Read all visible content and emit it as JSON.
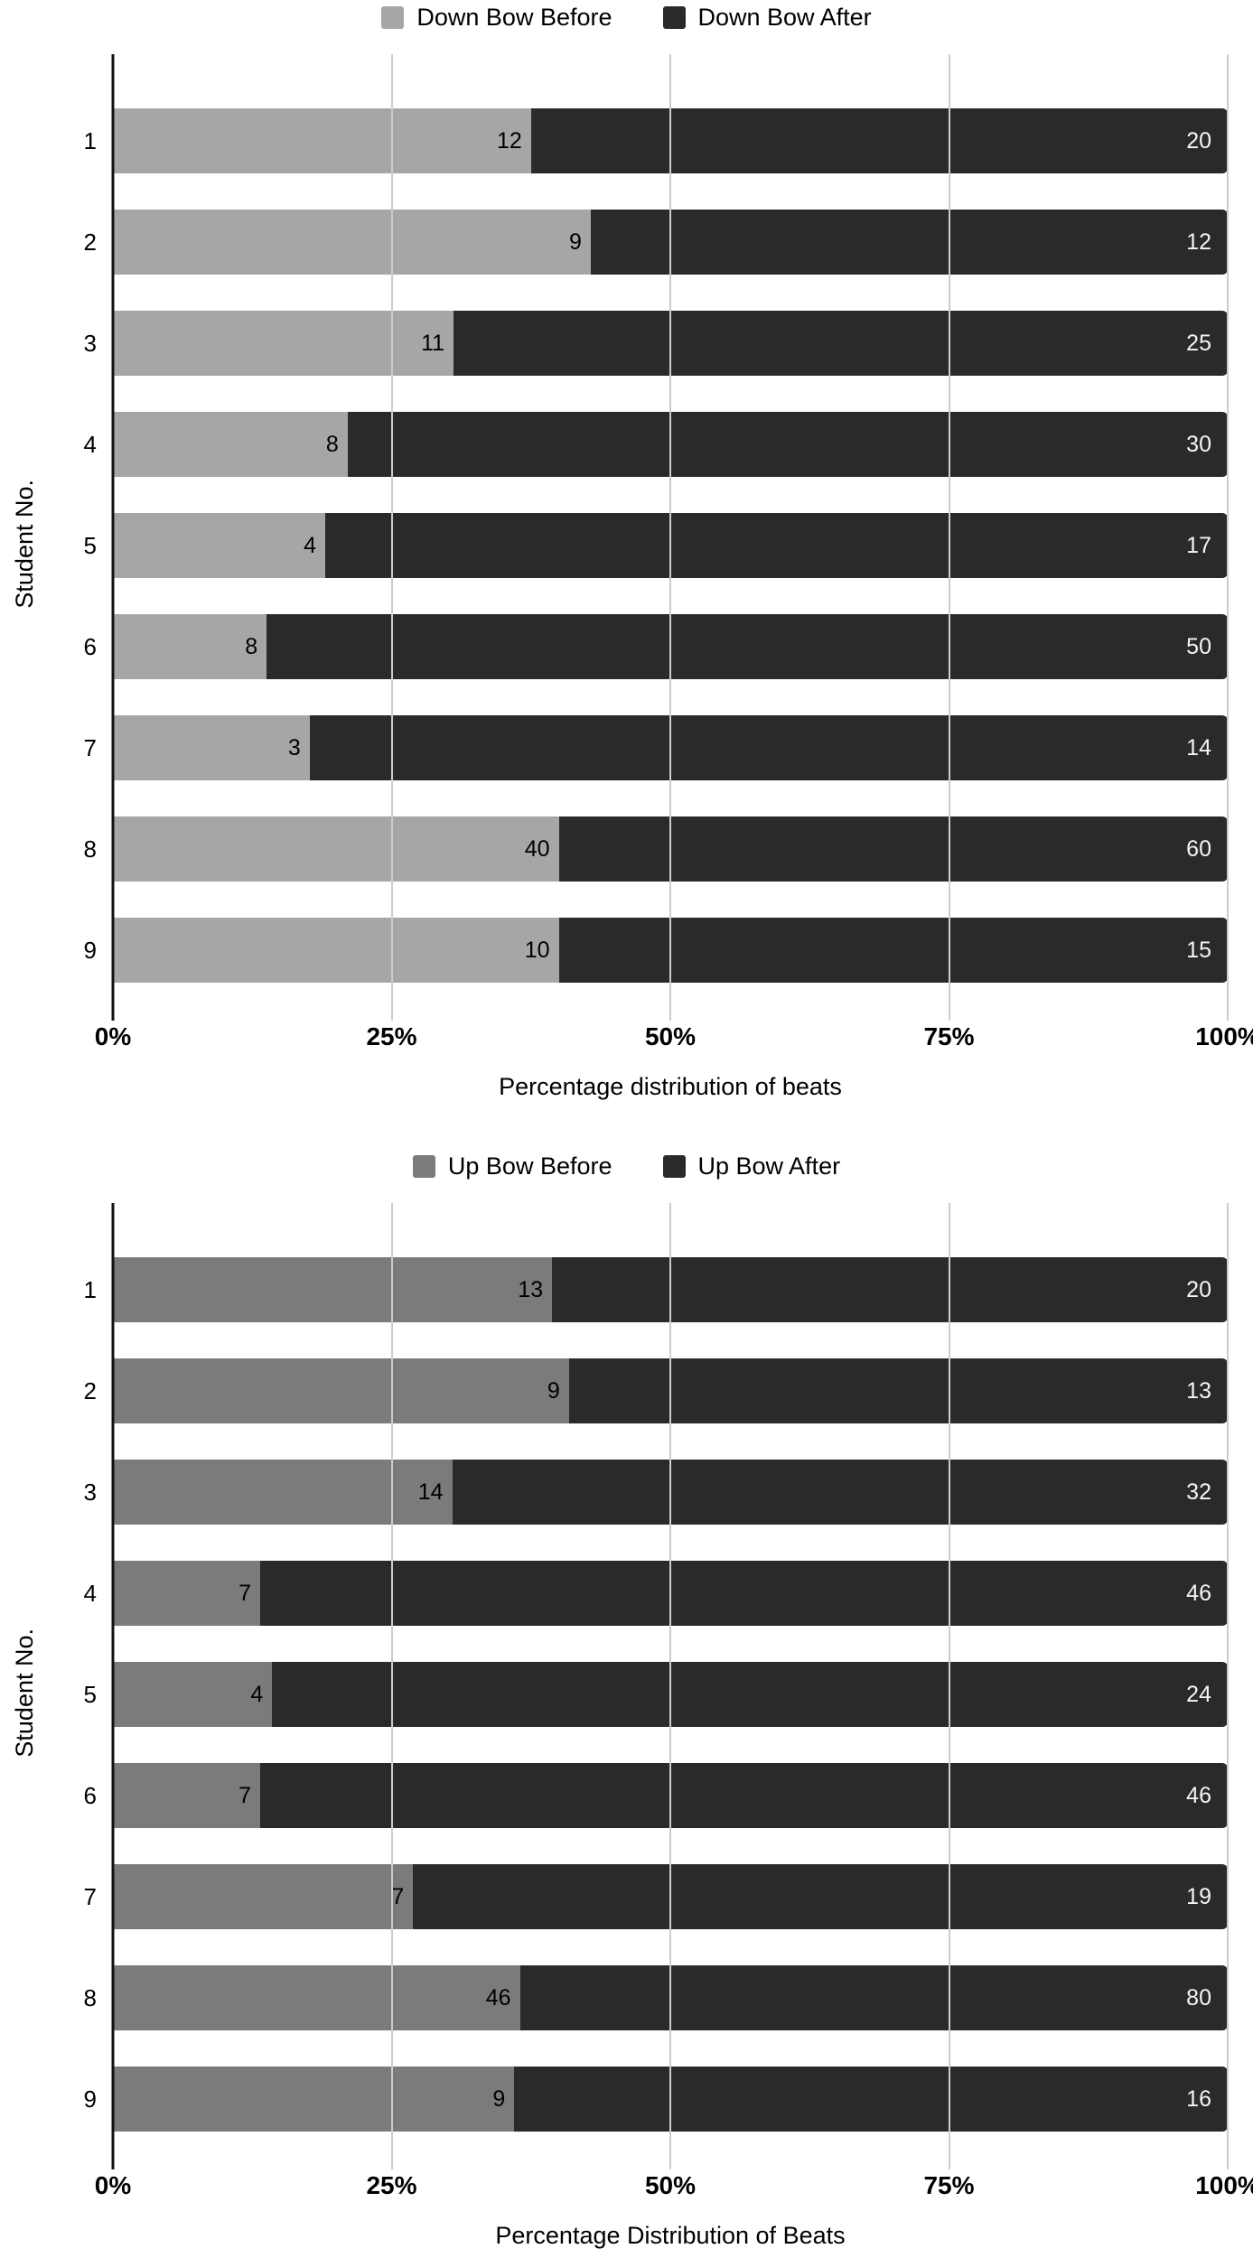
{
  "chart_data": [
    {
      "type": "bar",
      "orientation": "horizontal",
      "stacked": true,
      "normalized": "percent",
      "categories": [
        "1",
        "2",
        "3",
        "4",
        "5",
        "6",
        "7",
        "8",
        "9"
      ],
      "series": [
        {
          "name": "Down Bow Before",
          "color": "#a6a6a6",
          "values": [
            12,
            9,
            11,
            8,
            4,
            8,
            3,
            40,
            10
          ]
        },
        {
          "name": "Down Bow After",
          "color": "#2a2a2a",
          "values": [
            20,
            12,
            25,
            30,
            17,
            50,
            14,
            60,
            15
          ]
        }
      ],
      "xlabel": "Percentage distribution of beats",
      "ylabel": "Student No.",
      "x_ticks": [
        "0%",
        "25%",
        "50%",
        "75%",
        "100%"
      ],
      "xlim": [
        0,
        100
      ],
      "grid": true,
      "legend_position": "top",
      "gridline_color": "#cccccc",
      "axis_color": "#111111",
      "value_label_color_on_dark": "#f5f5f5",
      "value_label_color_on_gray": "#000000"
    },
    {
      "type": "bar",
      "orientation": "horizontal",
      "stacked": true,
      "normalized": "percent",
      "categories": [
        "1",
        "2",
        "3",
        "4",
        "5",
        "6",
        "7",
        "8",
        "9"
      ],
      "series": [
        {
          "name": "Up Bow Before",
          "color": "#7b7b7b",
          "values": [
            13,
            9,
            14,
            7,
            4,
            7,
            7,
            46,
            9
          ]
        },
        {
          "name": "Up Bow After",
          "color": "#2a2a2a",
          "values": [
            20,
            13,
            32,
            46,
            24,
            46,
            19,
            80,
            16
          ]
        }
      ],
      "xlabel": "Percentage Distribution of Beats",
      "ylabel": "Student No.",
      "x_ticks": [
        "0%",
        "25%",
        "50%",
        "75%",
        "100%"
      ],
      "xlim": [
        0,
        100
      ],
      "grid": true,
      "legend_position": "top",
      "gridline_color": "#cccccc",
      "axis_color": "#111111",
      "value_label_color_on_dark": "#f5f5f5",
      "value_label_color_on_gray": "#000000"
    }
  ]
}
